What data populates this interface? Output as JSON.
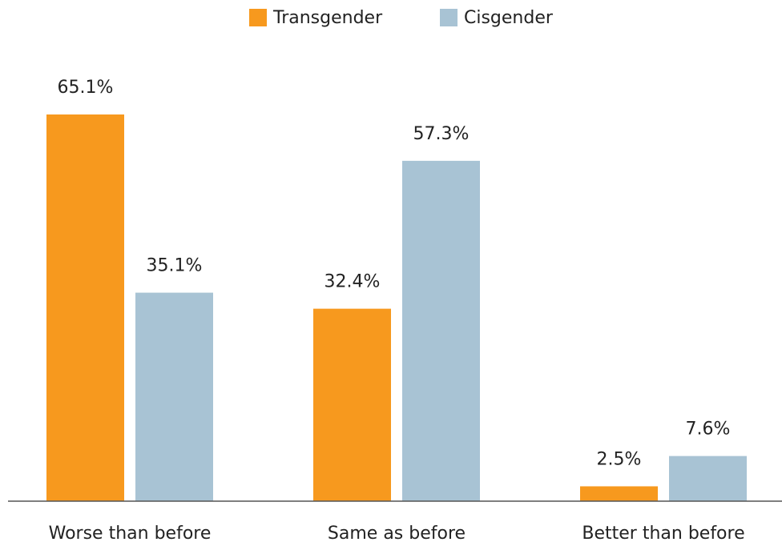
{
  "chart_data": {
    "type": "bar",
    "categories": [
      "Worse than before",
      "Same as before",
      "Better than before"
    ],
    "series": [
      {
        "name": "Transgender",
        "color": "#f7991e",
        "values": [
          65.1,
          32.4,
          2.5
        ],
        "value_labels": [
          "65.1%",
          "32.4%",
          "2.5%"
        ]
      },
      {
        "name": "Cisgender",
        "color": "#a8c3d4",
        "values": [
          35.1,
          57.3,
          7.6
        ],
        "value_labels": [
          "35.1%",
          "57.3%",
          "7.6%"
        ]
      }
    ],
    "legend": "top"
  }
}
